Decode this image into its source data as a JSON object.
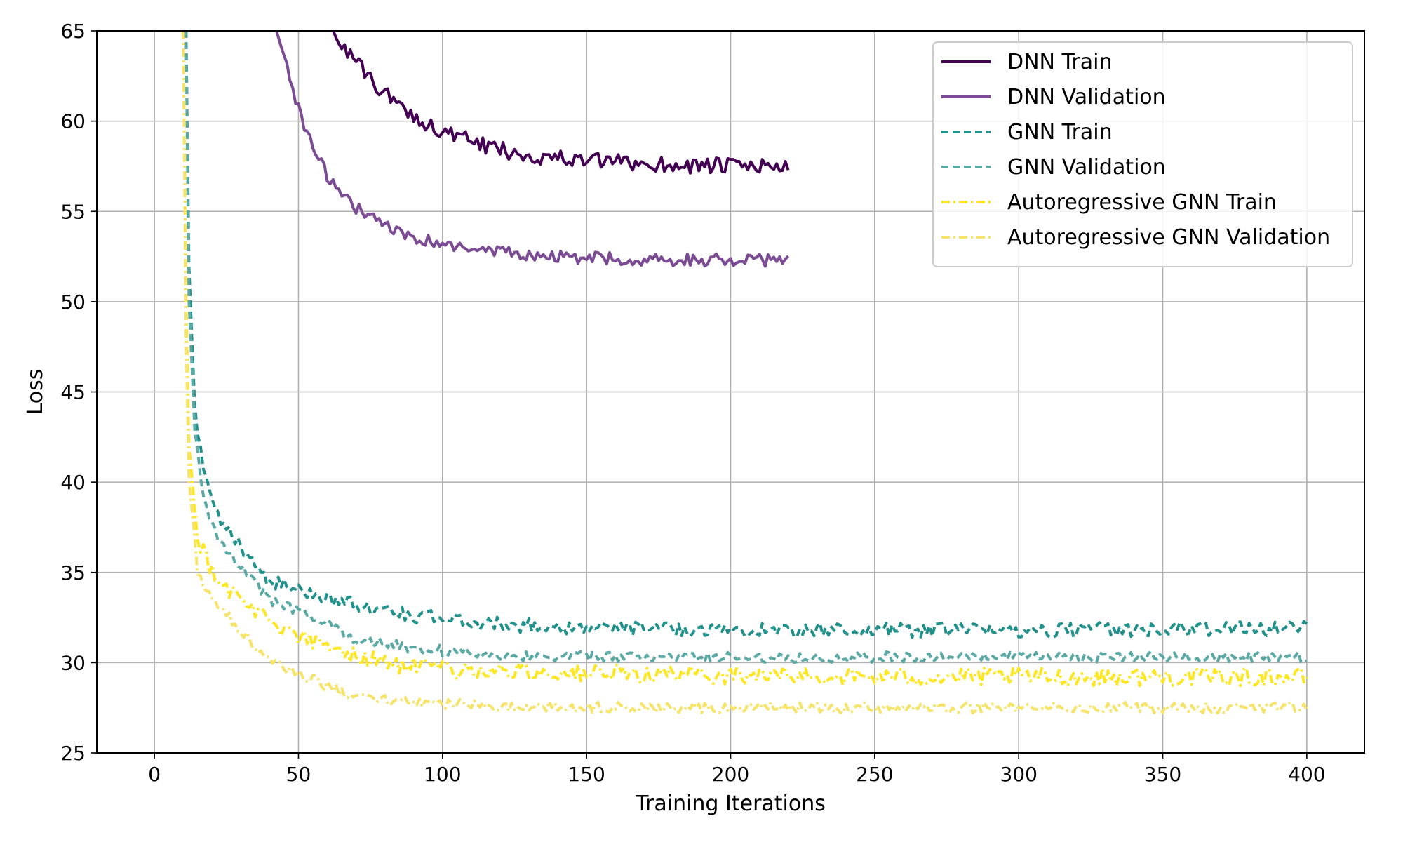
{
  "chart_data": {
    "type": "line",
    "title": "",
    "xlabel": "Training Iterations",
    "ylabel": "Loss",
    "xlim": [
      -20,
      420
    ],
    "ylim": [
      25,
      65
    ],
    "xticks": [
      0,
      50,
      100,
      150,
      200,
      250,
      300,
      350,
      400
    ],
    "yticks": [
      25,
      30,
      35,
      40,
      45,
      50,
      55,
      60,
      65
    ],
    "grid": true,
    "legend_position": "top-right",
    "series": [
      {
        "name": "DNN Train",
        "color": "#440154",
        "dash": "solid",
        "x_end": 220,
        "anchors": [
          [
            60,
            65.5
          ],
          [
            70,
            63.2
          ],
          [
            80,
            61.5
          ],
          [
            90,
            60.3
          ],
          [
            100,
            59.4
          ],
          [
            115,
            58.6
          ],
          [
            130,
            58.1
          ],
          [
            150,
            57.8
          ],
          [
            175,
            57.6
          ],
          [
            200,
            57.5
          ],
          [
            220,
            57.5
          ]
        ],
        "noise": 0.45
      },
      {
        "name": "DNN Validation",
        "color": "#7b4b94",
        "dash": "solid",
        "x_end": 220,
        "anchors": [
          [
            42,
            65.2
          ],
          [
            47,
            62.5
          ],
          [
            52,
            59.5
          ],
          [
            60,
            57.0
          ],
          [
            70,
            55.2
          ],
          [
            85,
            53.8
          ],
          [
            100,
            53.1
          ],
          [
            120,
            52.7
          ],
          [
            150,
            52.4
          ],
          [
            200,
            52.3
          ],
          [
            220,
            52.3
          ]
        ],
        "noise": 0.35
      },
      {
        "name": "GNN Train",
        "color": "#21918c",
        "dash": "10,6",
        "x_end": 400,
        "anchors": [
          [
            11,
            65
          ],
          [
            12,
            52
          ],
          [
            14,
            44
          ],
          [
            17,
            40.5
          ],
          [
            22,
            38
          ],
          [
            30,
            36.5
          ],
          [
            40,
            34.5
          ],
          [
            55,
            33.8
          ],
          [
            70,
            33.2
          ],
          [
            90,
            32.6
          ],
          [
            120,
            32.1
          ],
          [
            160,
            31.9
          ],
          [
            220,
            31.8
          ],
          [
            300,
            31.8
          ],
          [
            400,
            31.9
          ]
        ],
        "noise": 0.4
      },
      {
        "name": "GNN Validation",
        "color": "#5ba9a4",
        "dash": "10,6",
        "x_end": 400,
        "anchors": [
          [
            11,
            65
          ],
          [
            12,
            50
          ],
          [
            14,
            43
          ],
          [
            17,
            39
          ],
          [
            22,
            37
          ],
          [
            30,
            35.3
          ],
          [
            40,
            33.5
          ],
          [
            55,
            32.5
          ],
          [
            70,
            31.3
          ],
          [
            90,
            30.8
          ],
          [
            120,
            30.4
          ],
          [
            160,
            30.3
          ],
          [
            250,
            30.3
          ],
          [
            400,
            30.3
          ]
        ],
        "noise": 0.3
      },
      {
        "name": "Autoregressive GNN Train",
        "color": "#fde725",
        "dash": "12,5,3,5",
        "x_end": 400,
        "anchors": [
          [
            10,
            65
          ],
          [
            11,
            50
          ],
          [
            12,
            42
          ],
          [
            15,
            37
          ],
          [
            20,
            35
          ],
          [
            30,
            33.5
          ],
          [
            45,
            31.8
          ],
          [
            60,
            30.8
          ],
          [
            80,
            30.0
          ],
          [
            100,
            29.6
          ],
          [
            150,
            29.4
          ],
          [
            250,
            29.2
          ],
          [
            400,
            29.2
          ]
        ],
        "noise": 0.5
      },
      {
        "name": "Autoregressive GNN Validation",
        "color": "#f6e46a",
        "dash": "12,5,3,5",
        "x_end": 400,
        "anchors": [
          [
            10,
            65
          ],
          [
            11,
            48
          ],
          [
            12,
            40
          ],
          [
            15,
            35
          ],
          [
            20,
            33.5
          ],
          [
            30,
            31.8
          ],
          [
            40,
            30.0
          ],
          [
            50,
            29.4
          ],
          [
            65,
            28.4
          ],
          [
            80,
            27.9
          ],
          [
            100,
            27.7
          ],
          [
            150,
            27.5
          ],
          [
            250,
            27.5
          ],
          [
            400,
            27.5
          ]
        ],
        "noise": 0.3
      }
    ]
  }
}
